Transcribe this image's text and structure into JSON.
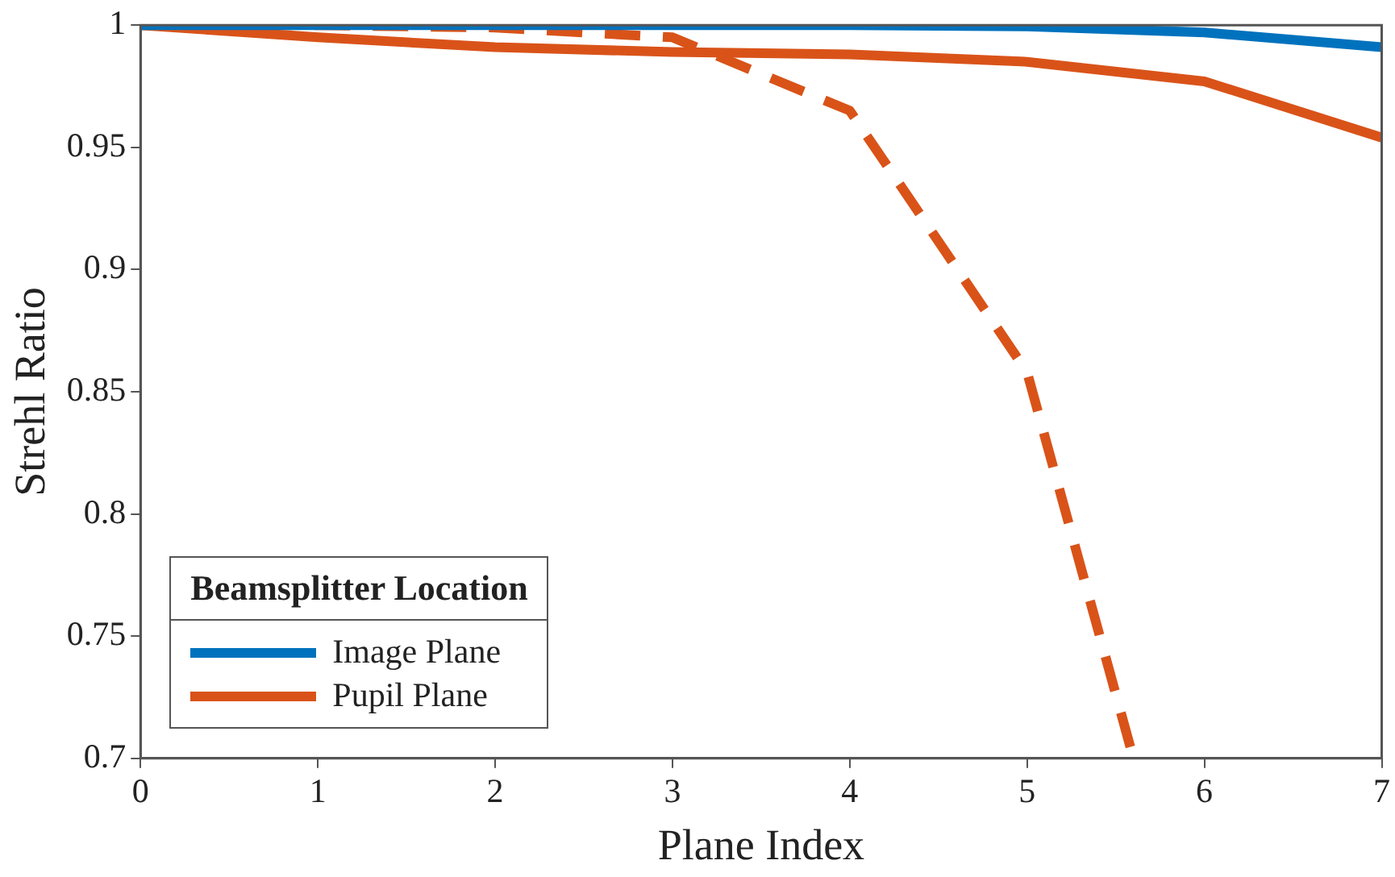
{
  "chart_data": {
    "type": "line",
    "xlabel": "Plane Index",
    "ylabel": "Strehl Ratio",
    "legend_title": "Beamsplitter Location",
    "legend": "bottom left",
    "grid": false,
    "line_style": "solid",
    "marker": "none",
    "x": [
      0,
      1,
      2,
      3,
      4,
      5,
      6,
      7
    ],
    "series": [
      {
        "name": "Image Plane",
        "color": "#0072bd",
        "values": [
          1,
          1,
          1,
          1,
          1,
          0.9995,
          0.997,
          0.991
        ]
      },
      {
        "name": "Pupil Plane",
        "color": "#d95319",
        "values": [
          1,
          0.995,
          0.991,
          0.989,
          0.988,
          0.985,
          0.977,
          0.954
        ]
      },
      {
        "color": "#d95319",
        "line_style": "dashed",
        "x": [
          0,
          1,
          2,
          3,
          4,
          5,
          5.6
        ],
        "values": [
          1,
          1,
          0.999,
          0.995,
          0.965,
          0.858,
          0.7
        ]
      }
    ],
    "xlim": [
      0,
      7
    ],
    "xticks": [
      0,
      1,
      2,
      3,
      4,
      5,
      6,
      7
    ],
    "ylim": [
      0.7,
      1
    ],
    "yticks": [
      0.7,
      0.75,
      0.8,
      0.85,
      0.9,
      0.95,
      1
    ]
  }
}
